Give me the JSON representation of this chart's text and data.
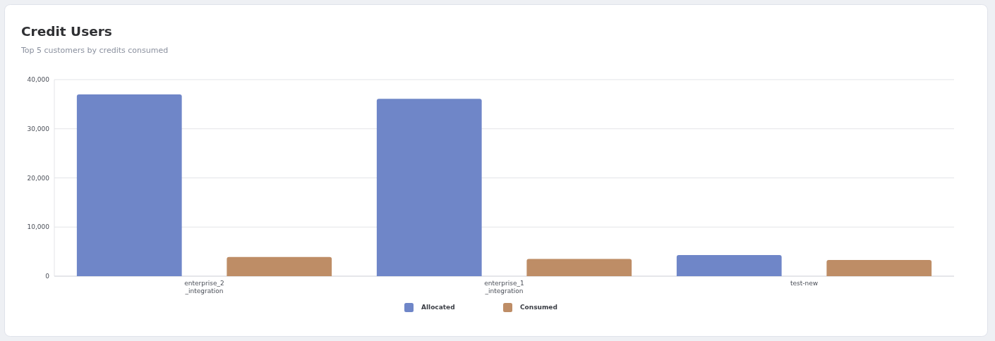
{
  "chart_data": {
    "type": "bar",
    "title": "Credit Users",
    "subtitle": "Top 5 customers by credits consumed",
    "categories": [
      "enterprise_2_integration",
      "enterprise_1_integration",
      "test-new"
    ],
    "series": [
      {
        "name": "Allocated",
        "color": "#6f86c8",
        "values": [
          37000,
          36100,
          4300
        ]
      },
      {
        "name": "Consumed",
        "color": "#be8d66",
        "values": [
          3900,
          3500,
          3300
        ]
      }
    ],
    "ylim": [
      0,
      40000
    ],
    "yticks": [
      {
        "value": 0,
        "label": "0"
      },
      {
        "value": 10000,
        "label": "10,000"
      },
      {
        "value": 20000,
        "label": "20,000"
      },
      {
        "value": 30000,
        "label": "30,000"
      },
      {
        "value": 40000,
        "label": "40,000"
      }
    ],
    "grid": "y",
    "legend": "bottom"
  }
}
